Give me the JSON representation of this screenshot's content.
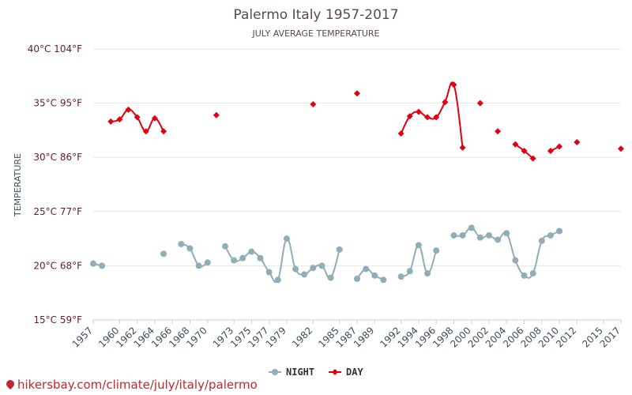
{
  "chart_data": {
    "type": "line",
    "title": "Palermo Italy 1957-2017",
    "subtitle": "JULY AVERAGE TEMPERATURE",
    "ylabel": "TEMPERATURE",
    "ylim": [
      15,
      40
    ],
    "y_ticks": [
      {
        "value": 40,
        "label": "40°C 104°F"
      },
      {
        "value": 35,
        "label": "35°C 95°F"
      },
      {
        "value": 30,
        "label": "30°C 86°F"
      },
      {
        "value": 25,
        "label": "25°C 77°F"
      },
      {
        "value": 20,
        "label": "20°C 68°F"
      },
      {
        "value": 15,
        "label": "15°C 59°F"
      }
    ],
    "x_range": [
      1957,
      2017
    ],
    "x_ticks": [
      1957,
      1960,
      1962,
      1964,
      1966,
      1968,
      1970,
      1973,
      1975,
      1977,
      1979,
      1982,
      1985,
      1987,
      1989,
      1992,
      1994,
      1996,
      1998,
      2000,
      2002,
      2004,
      2006,
      2008,
      2010,
      2012,
      2015,
      2017
    ],
    "x_tick_labels": [
      "1957",
      "1960",
      "1962",
      "1964",
      "1966",
      "1968",
      "1970",
      "1973",
      "1975",
      "1977",
      "1979",
      "1982",
      "1985",
      "1987",
      "1989",
      "1992",
      "1994",
      "1996",
      "1998",
      "2000",
      "2002",
      "2004",
      "2006",
      "2008",
      "2010",
      "2012",
      "2015",
      "2017"
    ],
    "series": [
      {
        "name": "NIGHT",
        "color": "#90adb8",
        "marker": "circle",
        "points": [
          [
            1957,
            20.2
          ],
          [
            1958,
            20.0
          ],
          [
            null,
            null
          ],
          [
            1965,
            21.1
          ],
          [
            null,
            null
          ],
          [
            1967,
            22.0
          ],
          [
            1968,
            21.6
          ],
          [
            1969,
            20.0
          ],
          [
            1970,
            20.3
          ],
          [
            null,
            null
          ],
          [
            1972,
            21.8
          ],
          [
            1973,
            20.5
          ],
          [
            1974,
            20.7
          ],
          [
            1975,
            21.3
          ],
          [
            1976,
            20.7
          ],
          [
            1977,
            19.4
          ],
          [
            1978,
            18.7
          ],
          [
            1979,
            22.5
          ],
          [
            1980,
            19.7
          ],
          [
            1981,
            19.2
          ],
          [
            1982,
            19.8
          ],
          [
            1983,
            20.0
          ],
          [
            1984,
            18.9
          ],
          [
            1985,
            21.5
          ],
          [
            null,
            null
          ],
          [
            1987,
            18.8
          ],
          [
            1988,
            19.7
          ],
          [
            1989,
            19.1
          ],
          [
            1990,
            18.7
          ],
          [
            null,
            null
          ],
          [
            1992,
            19.0
          ],
          [
            1993,
            19.5
          ],
          [
            1994,
            21.9
          ],
          [
            1995,
            19.3
          ],
          [
            1996,
            21.4
          ],
          [
            null,
            null
          ],
          [
            1998,
            22.8
          ],
          [
            1999,
            22.8
          ],
          [
            2000,
            23.5
          ],
          [
            2001,
            22.6
          ],
          [
            2002,
            22.8
          ],
          [
            2003,
            22.4
          ],
          [
            2004,
            23.0
          ],
          [
            2005,
            20.5
          ],
          [
            2006,
            19.1
          ],
          [
            2007,
            19.3
          ],
          [
            2008,
            22.3
          ],
          [
            2009,
            22.8
          ],
          [
            2010,
            23.2
          ]
        ]
      },
      {
        "name": "DAY",
        "color": "#e0000f",
        "marker": "diamond",
        "points": [
          [
            1959,
            33.3
          ],
          [
            1960,
            33.5
          ],
          [
            1961,
            34.4
          ],
          [
            1962,
            33.7
          ],
          [
            1963,
            32.4
          ],
          [
            1964,
            33.6
          ],
          [
            1965,
            32.4
          ],
          [
            null,
            null
          ],
          [
            1971,
            33.9
          ],
          [
            null,
            null
          ],
          [
            1982,
            34.9
          ],
          [
            null,
            null
          ],
          [
            1987,
            35.9
          ],
          [
            null,
            null
          ],
          [
            1992,
            32.2
          ],
          [
            1993,
            33.8
          ],
          [
            1994,
            34.2
          ],
          [
            1995,
            33.7
          ],
          [
            1996,
            33.7
          ],
          [
            1997,
            35.1
          ],
          [
            1998,
            36.7
          ],
          [
            1999,
            30.9
          ],
          [
            null,
            null
          ],
          [
            2001,
            35.0
          ],
          [
            null,
            null
          ],
          [
            2003,
            32.4
          ],
          [
            null,
            null
          ],
          [
            2005,
            31.2
          ],
          [
            2006,
            30.6
          ],
          [
            2007,
            29.9
          ],
          [
            null,
            null
          ],
          [
            2009,
            30.6
          ],
          [
            2010,
            31.0
          ],
          [
            null,
            null
          ],
          [
            2012,
            31.4
          ],
          [
            null,
            null
          ],
          [
            2017,
            30.8
          ]
        ]
      }
    ]
  },
  "footer": {
    "url": "hikersbay.com/climate/july/italy/palermo"
  }
}
